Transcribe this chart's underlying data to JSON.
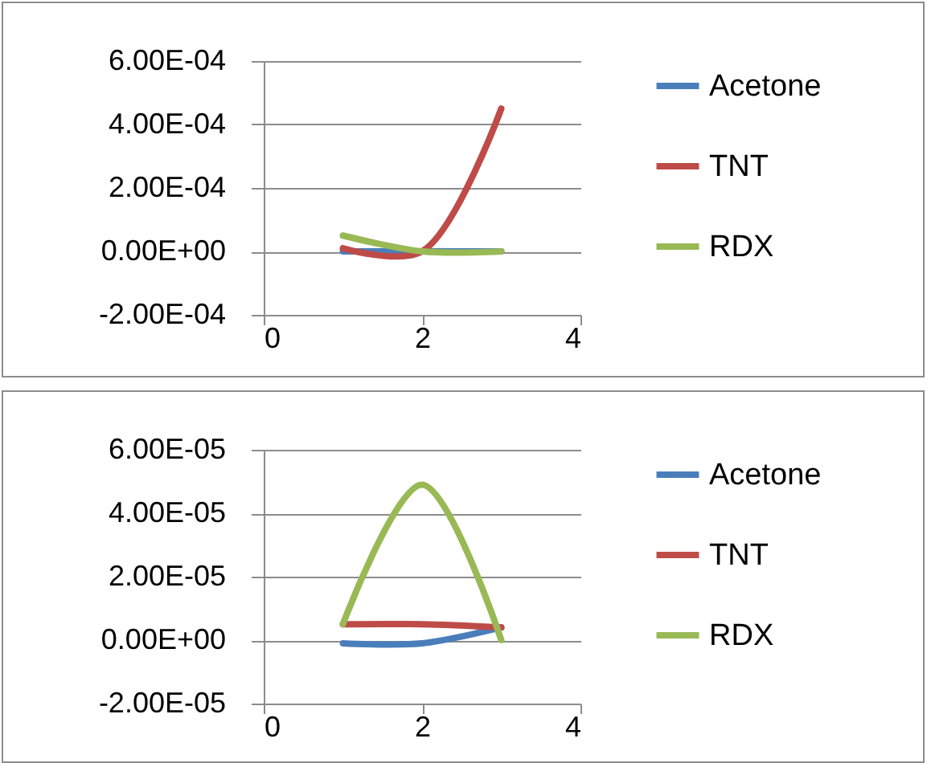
{
  "chart_data": [
    {
      "type": "line",
      "x": [
        1,
        2,
        3
      ],
      "xlim": [
        0,
        4
      ],
      "xticks": [
        0,
        2,
        4
      ],
      "ylim": [
        -0.0002,
        0.0006
      ],
      "yticks": [
        {
          "value": -0.0002,
          "label": "-2.00E-04"
        },
        {
          "value": 0,
          "label": "0.00E+00"
        },
        {
          "value": 0.0002,
          "label": "2.00E-04"
        },
        {
          "value": 0.0004,
          "label": "4.00E-04"
        },
        {
          "value": 0.0006,
          "label": "6.00E-04"
        }
      ],
      "series": [
        {
          "name": "Acetone",
          "color": "#4a7ebb",
          "values": [
            0,
            0,
            0
          ]
        },
        {
          "name": "TNT",
          "color": "#be4b48",
          "values": [
            1e-05,
            0,
            0.00045
          ]
        },
        {
          "name": "RDX",
          "color": "#98b954",
          "values": [
            5e-05,
            0,
            0
          ]
        }
      ],
      "grid": "y",
      "legend": "right"
    },
    {
      "type": "line",
      "x": [
        1,
        2,
        3
      ],
      "xlim": [
        0,
        4
      ],
      "xticks": [
        0,
        2,
        4
      ],
      "ylim": [
        -2e-05,
        6e-05
      ],
      "yticks": [
        {
          "value": -2e-05,
          "label": "-2.00E-05"
        },
        {
          "value": 0,
          "label": "0.00E+00"
        },
        {
          "value": 2e-05,
          "label": "2.00E-05"
        },
        {
          "value": 4e-05,
          "label": "4.00E-05"
        },
        {
          "value": 6e-05,
          "label": "6.00E-05"
        }
      ],
      "series": [
        {
          "name": "Acetone",
          "color": "#4a7ebb",
          "values": [
            -1e-06,
            -1e-06,
            4e-06
          ]
        },
        {
          "name": "TNT",
          "color": "#be4b48",
          "values": [
            5e-06,
            5e-06,
            4e-06
          ]
        },
        {
          "name": "RDX",
          "color": "#98b954",
          "values": [
            5e-06,
            4.9e-05,
            0
          ]
        }
      ],
      "grid": "y",
      "legend": "right"
    }
  ]
}
